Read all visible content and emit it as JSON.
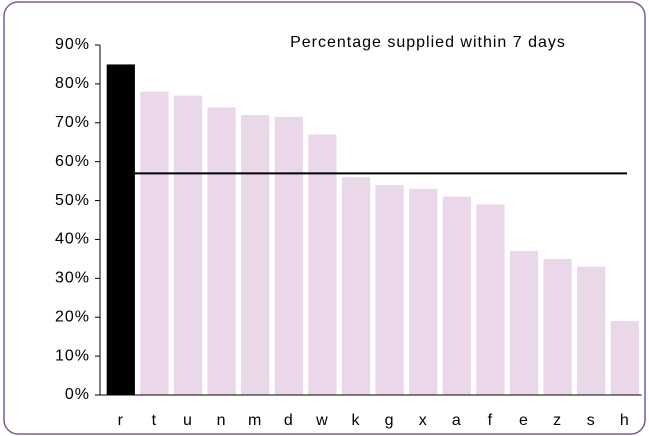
{
  "chart_data": {
    "type": "bar",
    "title": "Percentage supplied within 7 days",
    "categories": [
      "r",
      "t",
      "u",
      "n",
      "m",
      "d",
      "w",
      "k",
      "g",
      "x",
      "a",
      "f",
      "e",
      "z",
      "s",
      "h"
    ],
    "values": [
      85,
      78,
      77,
      74,
      72,
      71.5,
      67,
      56,
      54,
      53,
      51,
      49,
      37,
      35,
      33,
      19
    ],
    "colors": [
      "#000000",
      "#ead7ea",
      "#ead7ea",
      "#ead7ea",
      "#ead7ea",
      "#ead7ea",
      "#ead7ea",
      "#ead7ea",
      "#ead7ea",
      "#ead7ea",
      "#ead7ea",
      "#ead7ea",
      "#ead7ea",
      "#ead7ea",
      "#ead7ea",
      "#ead7ea"
    ],
    "reference_line": 57,
    "ylim": [
      0,
      90
    ],
    "yticks": [
      {
        "value": 0,
        "label": "0%"
      },
      {
        "value": 10,
        "label": "10%"
      },
      {
        "value": 20,
        "label": "20%"
      },
      {
        "value": 30,
        "label": "30%"
      },
      {
        "value": 40,
        "label": "40%"
      },
      {
        "value": 50,
        "label": "50%"
      },
      {
        "value": 60,
        "label": "60%"
      },
      {
        "value": 70,
        "label": "70%"
      },
      {
        "value": 80,
        "label": "80%"
      },
      {
        "value": 90,
        "label": "90%"
      }
    ],
    "grid": false
  }
}
